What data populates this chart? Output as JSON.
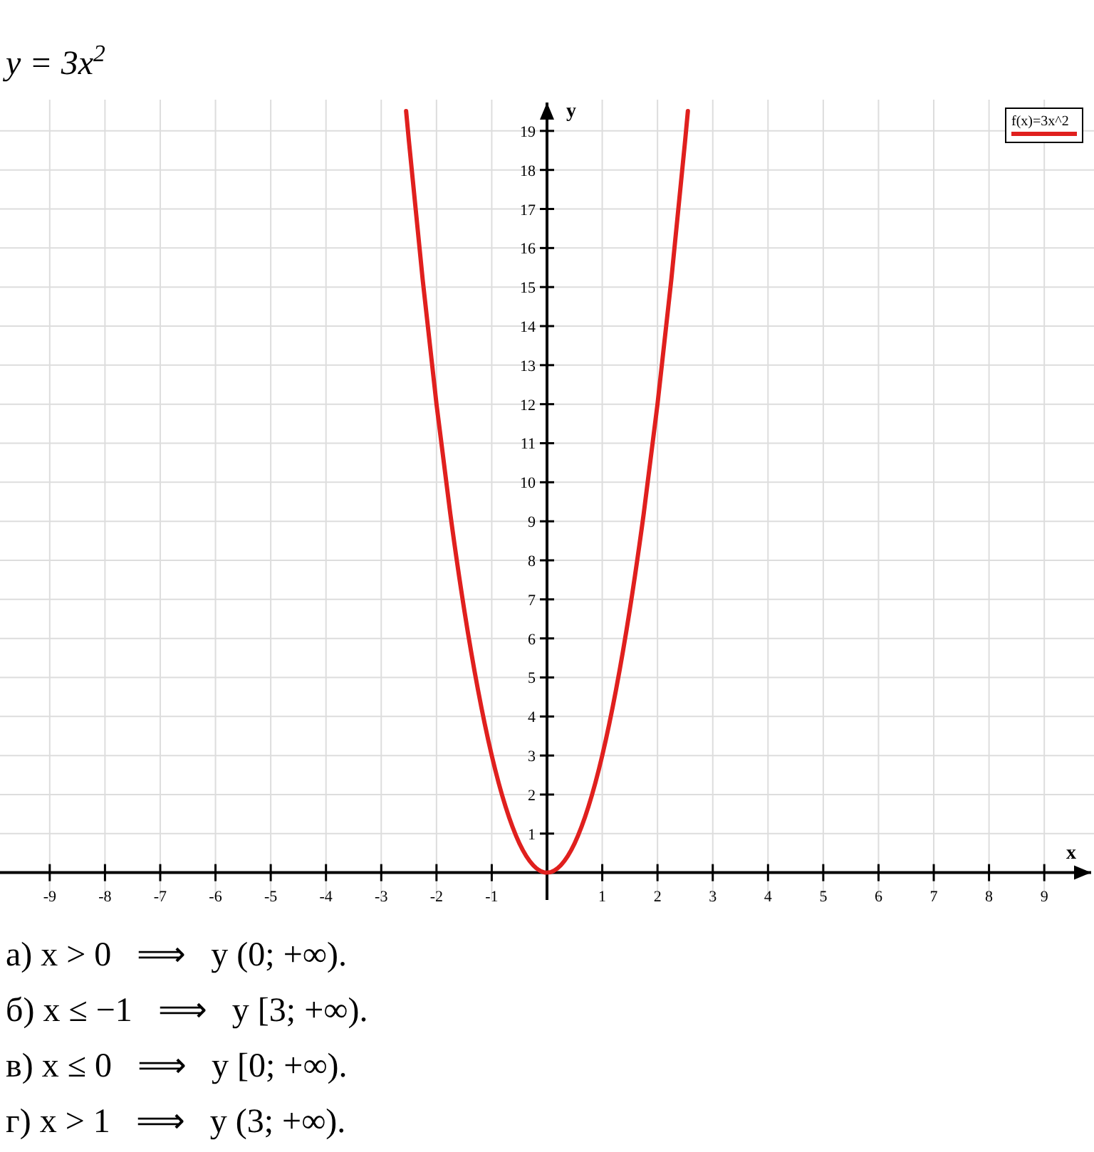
{
  "chart_data": {
    "type": "line",
    "title": "y = 3x$^{2}$",
    "xlabel": "x",
    "ylabel": "y",
    "series": [
      {
        "name": "f(x)=3x^2",
        "color": "#e0201e",
        "x": [
          -2.55,
          -2.5,
          -2.25,
          -2,
          -1.75,
          -1.5,
          -1.25,
          -1,
          -0.75,
          -0.5,
          -0.25,
          0,
          0.25,
          0.5,
          0.75,
          1,
          1.25,
          1.5,
          1.75,
          2,
          2.25,
          2.5,
          2.55
        ],
        "values": [
          19.51,
          18.75,
          15.19,
          12,
          9.19,
          6.75,
          4.69,
          3,
          1.69,
          0.75,
          0.19,
          0,
          0.19,
          0.75,
          1.69,
          3,
          4.69,
          6.75,
          9.19,
          12,
          15.19,
          18.75,
          19.51
        ]
      }
    ],
    "xlim": [
      -9.9,
      9.9
    ],
    "ylim": [
      -0.7,
      19.8
    ],
    "xticks": [
      -9,
      -8,
      -7,
      -6,
      -5,
      -4,
      -3,
      -2,
      -1,
      1,
      2,
      3,
      4,
      5,
      6,
      7,
      8,
      9
    ],
    "yticks": [
      1,
      2,
      3,
      4,
      5,
      6,
      7,
      8,
      9,
      10,
      11,
      12,
      13,
      14,
      15,
      16,
      17,
      18,
      19
    ],
    "grid": true,
    "legend": "top right",
    "marker": "none",
    "line_style": "solid",
    "annotations": [
      "а) x > 0   ⟹   y (0; +∞).",
      "б) x ≤ −1   ⟹   y [3; +∞).",
      "в) x ≤ 0   ⟹   y [0; +∞).",
      "г) x > 1   ⟹   y (3; +∞)."
    ]
  }
}
